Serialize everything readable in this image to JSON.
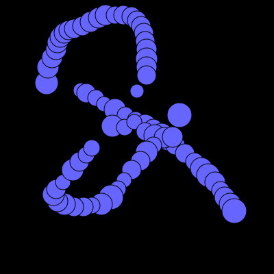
{
  "colors": {
    "background": "#000000",
    "dot_fill": "#6666ff",
    "dot_stroke": "#000000"
  }
}
